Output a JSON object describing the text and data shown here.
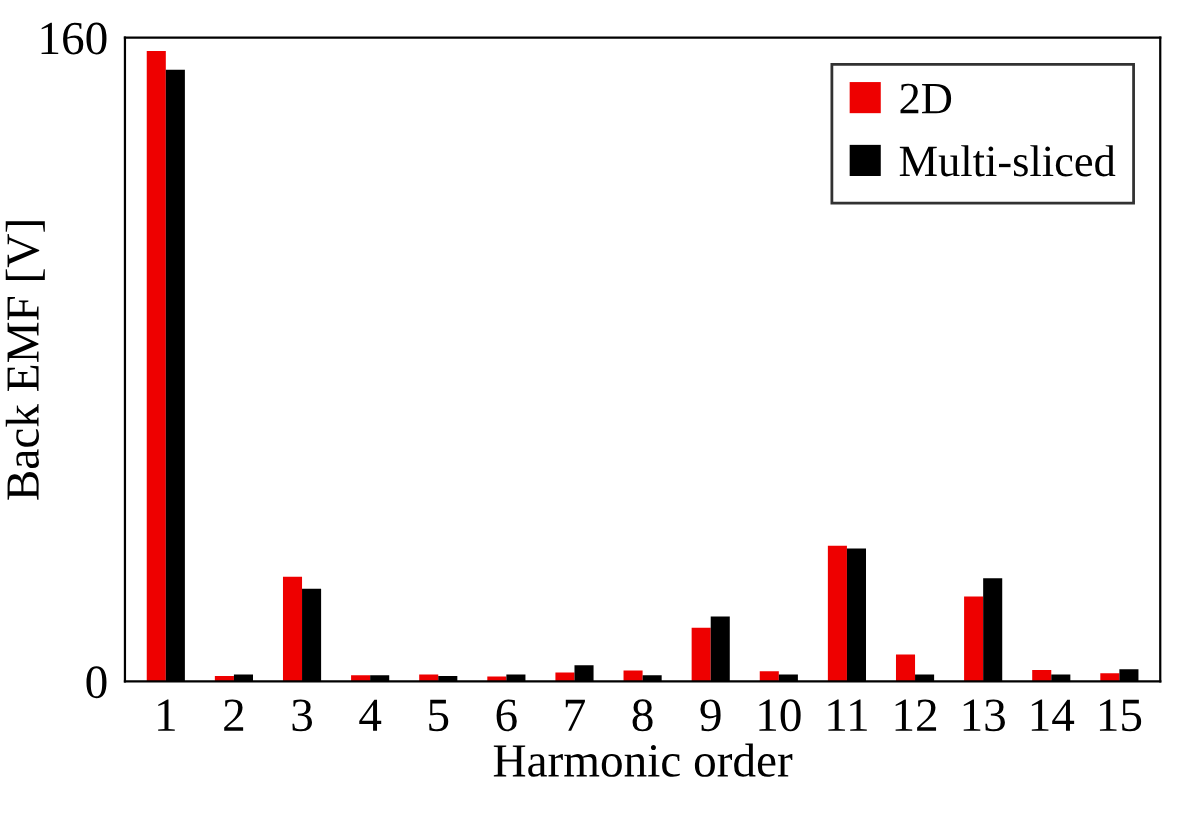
{
  "chart_data": {
    "type": "bar",
    "xlabel": "Harmonic order",
    "ylabel": "Back EMF [V]",
    "categories": [
      "1",
      "2",
      "3",
      "4",
      "5",
      "6",
      "7",
      "8",
      "9",
      "10",
      "11",
      "12",
      "13",
      "14",
      "15"
    ],
    "series": [
      {
        "name": "2D",
        "color": "#ee0000",
        "values": [
          156.7,
          1.3,
          26,
          1.5,
          1.7,
          1.2,
          2.2,
          2.7,
          13.3,
          2.5,
          33.7,
          6.7,
          21.1,
          2.8,
          2
        ]
      },
      {
        "name": "Multi-sliced",
        "color": "#000000",
        "values": [
          152,
          1.7,
          23,
          1.5,
          1.3,
          1.7,
          4,
          1.5,
          16.1,
          1.7,
          33,
          1.7,
          25.6,
          1.7,
          3
        ]
      }
    ],
    "ylim": [
      0,
      160
    ],
    "yticks": [
      0,
      160
    ],
    "grid": false,
    "legend": "top right"
  }
}
